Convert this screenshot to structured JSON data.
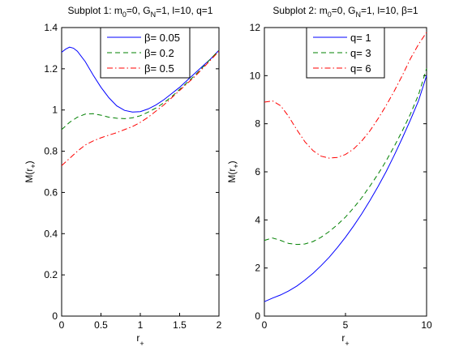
{
  "chart_data": [
    {
      "type": "line",
      "title": "Subplot 1: m",
      "title_sub1": "0",
      "title_mid": "=0, G",
      "title_sub2": "N",
      "title_end": "=1, l=10, q=1",
      "xlabel": "r",
      "xlabel_sub": "+",
      "ylabel": "M(r",
      "ylabel_sub": "+",
      "ylabel_end": ")",
      "xlim": [
        0,
        2
      ],
      "ylim": [
        0,
        1.4
      ],
      "xticks": [
        0,
        0.5,
        1,
        1.5,
        2
      ],
      "xtick_labels": [
        "0",
        "0.5",
        "1",
        "1.5",
        "2"
      ],
      "yticks": [
        0,
        0.2,
        0.4,
        0.6,
        0.8,
        1,
        1.2,
        1.4
      ],
      "ytick_labels": [
        "0",
        "0.2",
        "0.4",
        "0.6",
        "0.8",
        "1",
        "1.2",
        "1.4"
      ],
      "legend_position": "top-right",
      "series": [
        {
          "name": "β= 0.05",
          "color": "#0000ff",
          "dash": "solid",
          "x": [
            0,
            0.05,
            0.1,
            0.15,
            0.2,
            0.3,
            0.4,
            0.5,
            0.6,
            0.7,
            0.8,
            0.9,
            1.0,
            1.1,
            1.2,
            1.3,
            1.4,
            1.5,
            1.6,
            1.7,
            1.8,
            1.9,
            2.0
          ],
          "y": [
            1.28,
            1.295,
            1.305,
            1.3,
            1.285,
            1.235,
            1.17,
            1.11,
            1.06,
            1.02,
            0.998,
            0.99,
            0.992,
            1.005,
            1.025,
            1.05,
            1.08,
            1.11,
            1.145,
            1.18,
            1.215,
            1.25,
            1.29
          ]
        },
        {
          "name": "β= 0.2",
          "color": "#008000",
          "dash": "dashed",
          "x": [
            0,
            0.1,
            0.2,
            0.3,
            0.4,
            0.5,
            0.6,
            0.7,
            0.8,
            0.9,
            1.0,
            1.1,
            1.2,
            1.3,
            1.4,
            1.5,
            1.6,
            1.7,
            1.8,
            1.9,
            2.0
          ],
          "y": [
            0.905,
            0.94,
            0.965,
            0.98,
            0.982,
            0.975,
            0.965,
            0.96,
            0.958,
            0.962,
            0.972,
            0.99,
            1.01,
            1.035,
            1.065,
            1.1,
            1.135,
            1.17,
            1.21,
            1.25,
            1.29
          ]
        },
        {
          "name": "β= 0.5",
          "color": "#ff0000",
          "dash": "dashdot",
          "x": [
            0,
            0.1,
            0.2,
            0.3,
            0.4,
            0.5,
            0.6,
            0.7,
            0.8,
            0.9,
            1.0,
            1.1,
            1.2,
            1.3,
            1.4,
            1.5,
            1.6,
            1.7,
            1.8,
            1.9,
            2.0
          ],
          "y": [
            0.73,
            0.765,
            0.8,
            0.83,
            0.85,
            0.865,
            0.878,
            0.89,
            0.905,
            0.92,
            0.94,
            0.965,
            0.995,
            1.025,
            1.06,
            1.095,
            1.13,
            1.165,
            1.205,
            1.245,
            1.285
          ]
        }
      ]
    },
    {
      "type": "line",
      "title": "Subplot 2: m",
      "title_sub1": "0",
      "title_mid": "=0, G",
      "title_sub2": "N",
      "title_end": "=1, l=10, β=1",
      "xlabel": "r",
      "xlabel_sub": "+",
      "ylabel": "M(r",
      "ylabel_sub": "+",
      "ylabel_end": ")",
      "xlim": [
        0,
        10
      ],
      "ylim": [
        0,
        12
      ],
      "xticks": [
        0,
        5,
        10
      ],
      "xtick_labels": [
        "0",
        "5",
        "10"
      ],
      "yticks": [
        0,
        2,
        4,
        6,
        8,
        10,
        12
      ],
      "ytick_labels": [
        "0",
        "2",
        "4",
        "6",
        "8",
        "10",
        "12"
      ],
      "legend_position": "top-center",
      "series": [
        {
          "name": "q= 1",
          "color": "#0000ff",
          "dash": "solid",
          "x": [
            0,
            0.5,
            1,
            1.5,
            2,
            2.5,
            3,
            3.5,
            4,
            4.5,
            5,
            5.5,
            6,
            6.5,
            7,
            7.5,
            8,
            8.5,
            9,
            9.5,
            10
          ],
          "y": [
            0.6,
            0.75,
            0.88,
            1.05,
            1.25,
            1.5,
            1.78,
            2.1,
            2.45,
            2.85,
            3.28,
            3.75,
            4.25,
            4.8,
            5.38,
            6.0,
            6.68,
            7.4,
            8.15,
            8.95,
            10.0
          ]
        },
        {
          "name": "q= 3",
          "color": "#008000",
          "dash": "dashed",
          "x": [
            0,
            0.5,
            1,
            1.5,
            2,
            2.5,
            3,
            3.5,
            4,
            4.5,
            5,
            5.5,
            6,
            6.5,
            7,
            7.5,
            8,
            8.5,
            9,
            9.5,
            10
          ],
          "y": [
            3.15,
            3.25,
            3.15,
            3.02,
            2.98,
            3.0,
            3.1,
            3.28,
            3.52,
            3.8,
            4.12,
            4.5,
            4.92,
            5.4,
            5.9,
            6.45,
            7.05,
            7.7,
            8.4,
            9.2,
            10.3
          ]
        },
        {
          "name": "q= 6",
          "color": "#ff0000",
          "dash": "dashdot",
          "x": [
            0,
            0.5,
            1,
            1.5,
            2,
            2.5,
            3,
            3.5,
            4,
            4.5,
            5,
            5.5,
            6,
            6.5,
            7,
            7.5,
            8,
            8.5,
            9,
            9.5,
            10
          ],
          "y": [
            8.9,
            8.95,
            8.75,
            8.3,
            7.75,
            7.25,
            6.88,
            6.65,
            6.57,
            6.6,
            6.72,
            6.95,
            7.28,
            7.7,
            8.2,
            8.75,
            9.35,
            10.0,
            10.7,
            11.3,
            11.8
          ]
        }
      ]
    }
  ]
}
